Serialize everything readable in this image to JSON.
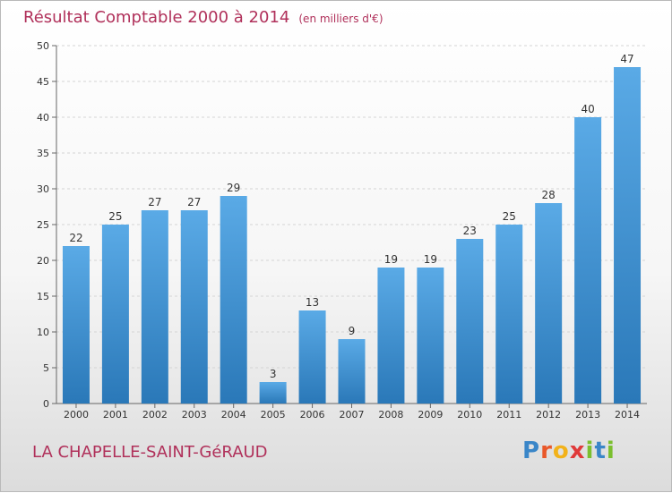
{
  "header": {
    "title": "Résultat Comptable 2000 à 2014",
    "unit": "(en milliers d'€)"
  },
  "footer": {
    "commune": "LA CHAPELLE-SAINT-GéRAUD",
    "logo": "Proxiti"
  },
  "colors": {
    "title": "#b0305a",
    "bar_top": "#5aaae6",
    "bar_bottom": "#2a78b8"
  },
  "chart_data": {
    "type": "bar",
    "title": "Résultat Comptable 2000 à 2014",
    "subtitle": "(en milliers d'€)",
    "xlabel": "",
    "ylabel": "",
    "categories": [
      "2000",
      "2001",
      "2002",
      "2003",
      "2004",
      "2005",
      "2006",
      "2007",
      "2008",
      "2009",
      "2010",
      "2011",
      "2012",
      "2013",
      "2014"
    ],
    "values": [
      22,
      25,
      27,
      27,
      29,
      3,
      13,
      9,
      19,
      19,
      23,
      25,
      28,
      40,
      47
    ],
    "ylim": [
      0,
      50
    ],
    "yticks": [
      0,
      5,
      10,
      15,
      20,
      25,
      30,
      35,
      40,
      45,
      50
    ],
    "grid": true,
    "legend": "none"
  }
}
